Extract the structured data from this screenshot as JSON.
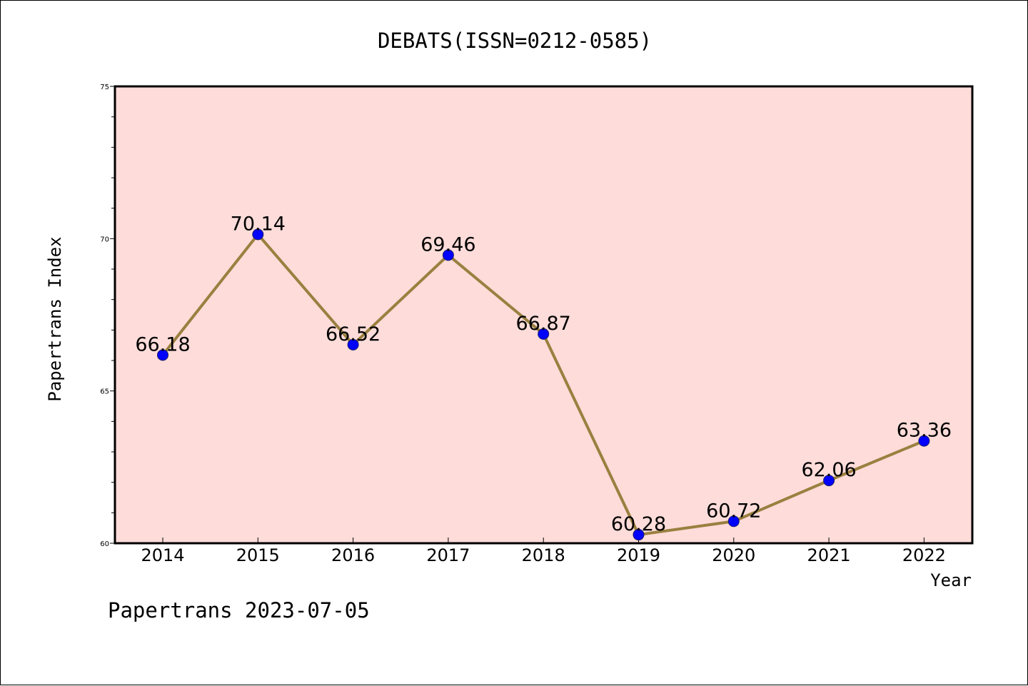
{
  "chart_data": {
    "type": "line",
    "title": "DEBATS(ISSN=0212-0585)",
    "xlabel": "Year",
    "ylabel": "Papertrans Index",
    "footer": "Papertrans 2023-07-05",
    "categories": [
      "2014",
      "2015",
      "2016",
      "2017",
      "2018",
      "2019",
      "2020",
      "2021",
      "2022"
    ],
    "values": [
      66.18,
      70.14,
      66.52,
      69.46,
      66.87,
      60.28,
      60.72,
      62.06,
      63.36
    ],
    "data_labels": [
      "66.18",
      "70.14",
      "66.52",
      "69.46",
      "66.87",
      "60.28",
      "60.72",
      "62.06",
      "63.36"
    ],
    "ylim": [
      60,
      75
    ],
    "yticks": [
      "60",
      "65",
      "70",
      "75"
    ],
    "grid": false,
    "colors": {
      "plot_background": "#fddcd9",
      "line": "#9a8040",
      "marker": "#0000ff"
    }
  }
}
